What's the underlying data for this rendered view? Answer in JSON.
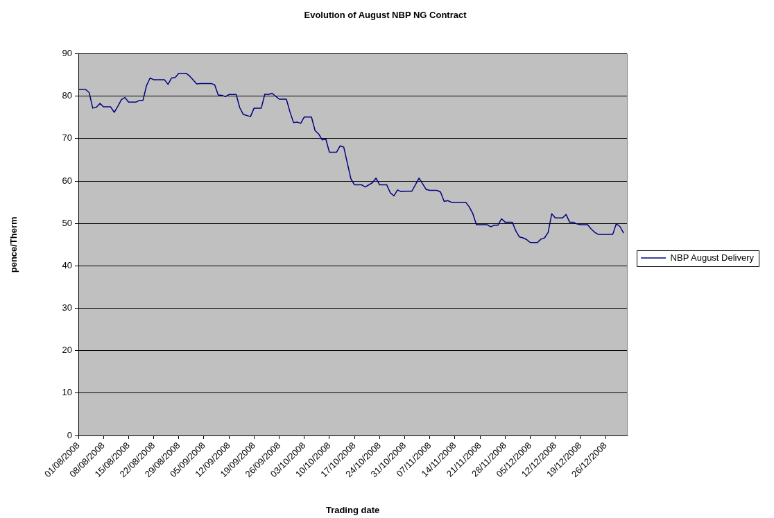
{
  "chart_data": {
    "type": "line",
    "title": "Evolution of August NBP NG Contract",
    "xlabel": "Trading date",
    "ylabel": "pence/Therm",
    "x": [
      "2008-08-01",
      "2008-08-03",
      "2008-08-04",
      "2008-08-05",
      "2008-08-06",
      "2008-08-07",
      "2008-08-08",
      "2008-08-10",
      "2008-08-11",
      "2008-08-12",
      "2008-08-13",
      "2008-08-14",
      "2008-08-15",
      "2008-08-17",
      "2008-08-18",
      "2008-08-19",
      "2008-08-20",
      "2008-08-21",
      "2008-08-22",
      "2008-08-25",
      "2008-08-26",
      "2008-08-27",
      "2008-08-28",
      "2008-08-29",
      "2008-08-31",
      "2008-09-01",
      "2008-09-03",
      "2008-09-04",
      "2008-09-07",
      "2008-09-08",
      "2008-09-09",
      "2008-09-10",
      "2008-09-11",
      "2008-09-12",
      "2008-09-14",
      "2008-09-15",
      "2008-09-16",
      "2008-09-18",
      "2008-09-19",
      "2008-09-21",
      "2008-09-22",
      "2008-09-23",
      "2008-09-24",
      "2008-09-26",
      "2008-09-28",
      "2008-09-29",
      "2008-09-30",
      "2008-10-01",
      "2008-10-02",
      "2008-10-03",
      "2008-10-05",
      "2008-10-06",
      "2008-10-07",
      "2008-10-08",
      "2008-10-09",
      "2008-10-10",
      "2008-10-12",
      "2008-10-13",
      "2008-10-14",
      "2008-10-16",
      "2008-10-17",
      "2008-10-19",
      "2008-10-20",
      "2008-10-22",
      "2008-10-23",
      "2008-10-24",
      "2008-10-26",
      "2008-10-27",
      "2008-10-28",
      "2008-10-29",
      "2008-10-30",
      "2008-10-31",
      "2008-11-02",
      "2008-11-04",
      "2008-11-06",
      "2008-11-07",
      "2008-11-09",
      "2008-11-10",
      "2008-11-11",
      "2008-11-12",
      "2008-11-13",
      "2008-11-17",
      "2008-11-18",
      "2008-11-19",
      "2008-11-20",
      "2008-11-23",
      "2008-11-24",
      "2008-11-25",
      "2008-11-26",
      "2008-11-27",
      "2008-11-28",
      "2008-11-30",
      "2008-12-01",
      "2008-12-02",
      "2008-12-03",
      "2008-12-04",
      "2008-12-05",
      "2008-12-07",
      "2008-12-08",
      "2008-12-09",
      "2008-12-10",
      "2008-12-11",
      "2008-12-12",
      "2008-12-14",
      "2008-12-15",
      "2008-12-16",
      "2008-12-17",
      "2008-12-18",
      "2008-12-19",
      "2008-12-21",
      "2008-12-22",
      "2008-12-23",
      "2008-12-24",
      "2008-12-28",
      "2008-12-29",
      "2008-12-30",
      "2008-12-31"
    ],
    "series": [
      {
        "name": "NBP August Delivery",
        "color": "#000080",
        "values": [
          81.6,
          81.6,
          80.9,
          77.2,
          77.4,
          78.3,
          77.5,
          77.5,
          76.2,
          77.6,
          79.2,
          79.7,
          78.6,
          78.6,
          79.0,
          79.0,
          82.5,
          84.3,
          83.9,
          83.9,
          82.8,
          84.3,
          84.4,
          85.4,
          85.4,
          84.8,
          82.9,
          83.0,
          83.0,
          82.7,
          80.3,
          80.2,
          79.9,
          80.4,
          80.4,
          77.3,
          75.7,
          75.2,
          77.2,
          77.2,
          80.5,
          80.4,
          80.7,
          79.3,
          79.3,
          76.3,
          73.8,
          73.9,
          73.6,
          75.1,
          75.1,
          71.9,
          71.1,
          69.7,
          69.9,
          66.8,
          66.8,
          68.3,
          68.0,
          60.5,
          59.1,
          59.1,
          58.6,
          59.6,
          60.7,
          59.1,
          59.1,
          57.2,
          56.5,
          57.9,
          57.5,
          57.6,
          57.6,
          60.7,
          58.0,
          57.8,
          57.8,
          57.4,
          55.2,
          55.4,
          55.0,
          55.0,
          53.9,
          52.3,
          49.7,
          49.7,
          49.2,
          49.6,
          49.6,
          51.1,
          50.3,
          50.3,
          48.2,
          46.8,
          46.6,
          46.2,
          45.5,
          45.5,
          46.3,
          46.6,
          47.9,
          52.3,
          51.3,
          51.3,
          52.1,
          50.3,
          50.3,
          49.9,
          49.7,
          49.7,
          48.7,
          47.9,
          47.4,
          47.4,
          49.9,
          49.3,
          47.8
        ]
      }
    ],
    "xlim": [
      "2008-08-01",
      "2009-01-01"
    ],
    "xticks": [
      {
        "value": "2008-08-01",
        "label": "01/08/2008"
      },
      {
        "value": "2008-08-08",
        "label": "08/08/2008"
      },
      {
        "value": "2008-08-15",
        "label": "15/08/2008"
      },
      {
        "value": "2008-08-22",
        "label": "22/08/2008"
      },
      {
        "value": "2008-08-29",
        "label": "29/08/2008"
      },
      {
        "value": "2008-09-05",
        "label": "05/09/2008"
      },
      {
        "value": "2008-09-12",
        "label": "12/09/2008"
      },
      {
        "value": "2008-09-19",
        "label": "19/09/2008"
      },
      {
        "value": "2008-09-26",
        "label": "26/09/2008"
      },
      {
        "value": "2008-10-03",
        "label": "03/10/2008"
      },
      {
        "value": "2008-10-10",
        "label": "10/10/2008"
      },
      {
        "value": "2008-10-17",
        "label": "17/10/2008"
      },
      {
        "value": "2008-10-24",
        "label": "24/10/2008"
      },
      {
        "value": "2008-10-31",
        "label": "31/10/2008"
      },
      {
        "value": "2008-11-07",
        "label": "07/11/2008"
      },
      {
        "value": "2008-11-14",
        "label": "14/11/2008"
      },
      {
        "value": "2008-11-21",
        "label": "21/11/2008"
      },
      {
        "value": "2008-11-28",
        "label": "28/11/2008"
      },
      {
        "value": "2008-12-05",
        "label": "05/12/2008"
      },
      {
        "value": "2008-12-12",
        "label": "12/12/2008"
      },
      {
        "value": "2008-12-19",
        "label": "19/12/2008"
      },
      {
        "value": "2008-12-26",
        "label": "26/12/2008"
      }
    ],
    "ylim": [
      0,
      90
    ],
    "yticks": [
      0,
      10,
      20,
      30,
      40,
      50,
      60,
      70,
      80,
      90
    ],
    "grid": "y",
    "legend": "right"
  }
}
